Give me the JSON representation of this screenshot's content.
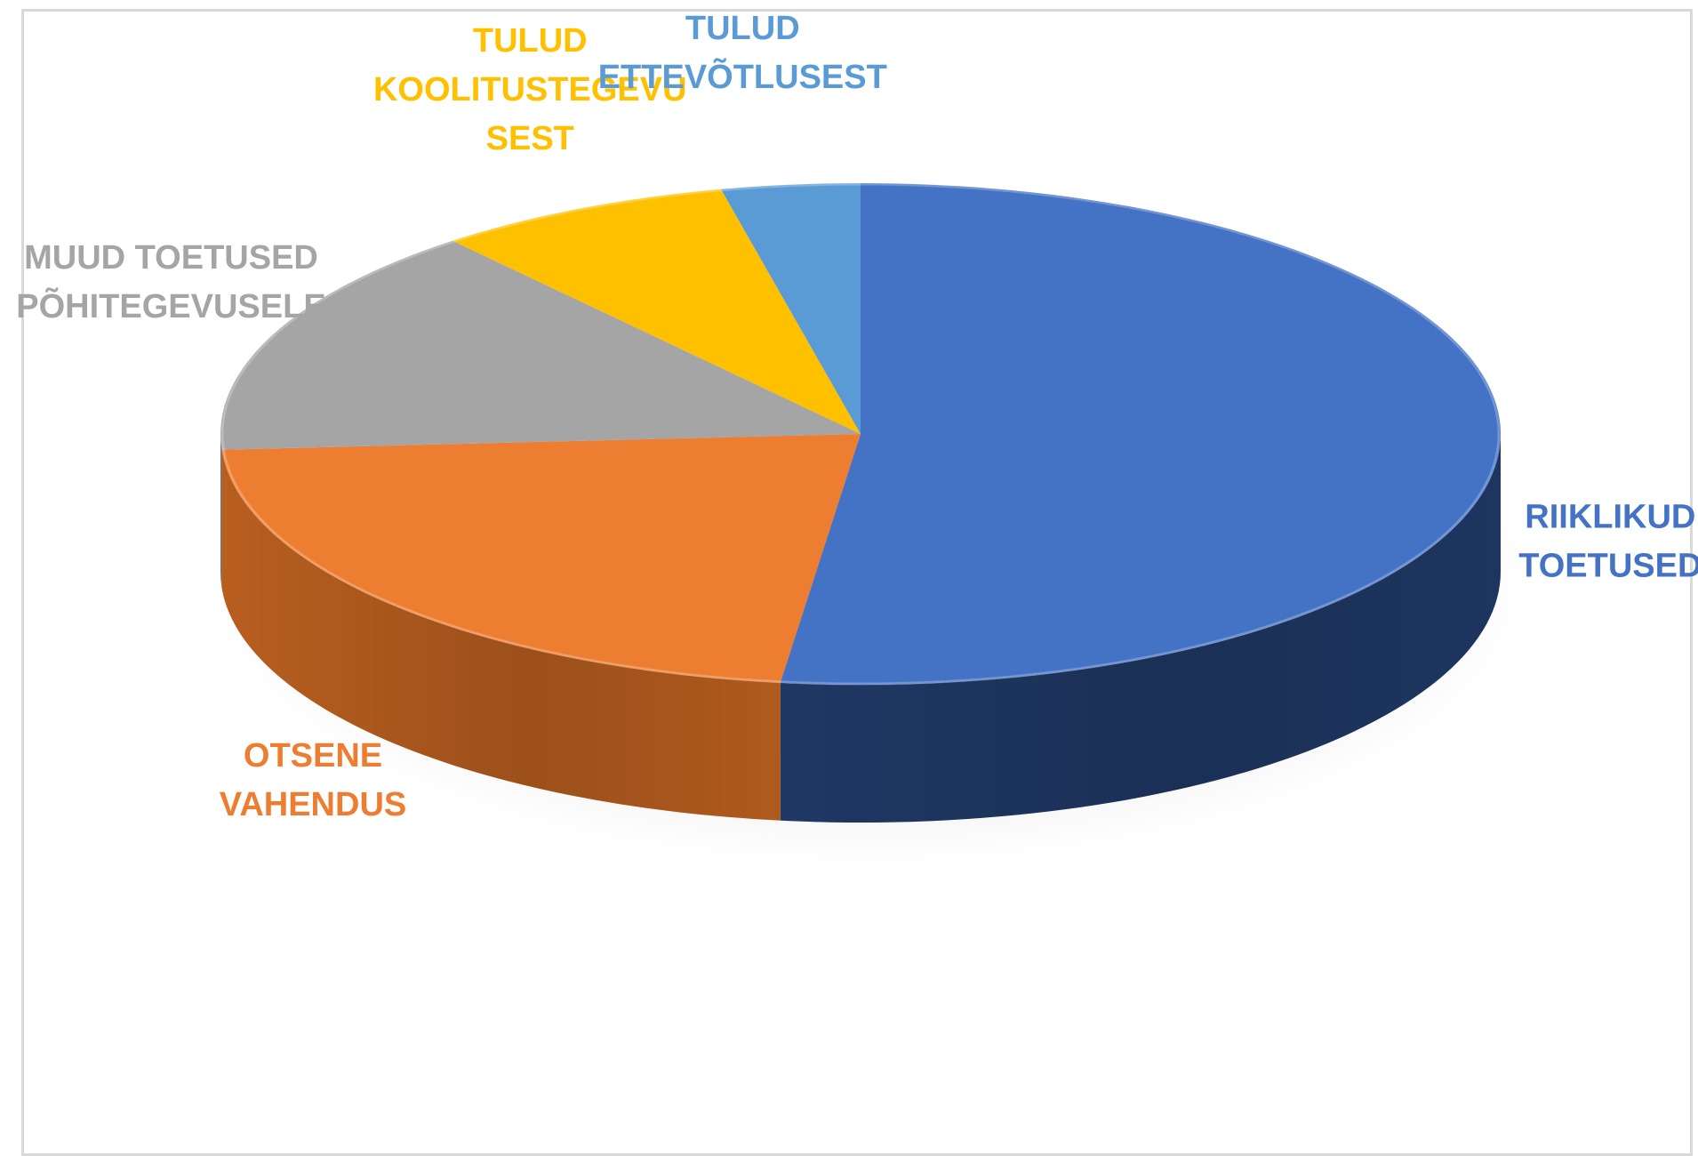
{
  "chart_data": {
    "type": "pie",
    "style": "3d",
    "title": "",
    "legend": "none",
    "slices": [
      {
        "label": "RIIKLIKUD TOETUSED",
        "lines": [
          "RIIKLIKUD",
          "TOETUSED"
        ],
        "value": 52,
        "color": "#4472C4",
        "side_color": "#1F3864"
      },
      {
        "label": "OTSENE VAHENDUS",
        "lines": [
          "OTSENE",
          "VAHENDUS"
        ],
        "value": 22,
        "color": "#ED7D31",
        "side_color": "#B85E1F"
      },
      {
        "label": "MUUD TOETUSED PÕHITEGEVUSELE",
        "lines": [
          "MUUD TOETUSED",
          "PÕHITEGEVUSELE"
        ],
        "value": 15,
        "color": "#A5A5A5",
        "side_color": "#7A7A7A"
      },
      {
        "label": "TULUD KOOLITUSTEGEVUSEST",
        "lines": [
          "TULUD",
          "KOOLITUSTEGEVU",
          "SEST"
        ],
        "value": 7.5,
        "color": "#FFC000",
        "side_color": "#C79600"
      },
      {
        "label": "TULUD ETTEVÕTLUSEST",
        "lines": [
          "TULUD",
          "ETTEVÕTLUSEST"
        ],
        "value": 3.5,
        "color": "#5B9BD5",
        "side_color": "#2E6DA4"
      }
    ]
  }
}
